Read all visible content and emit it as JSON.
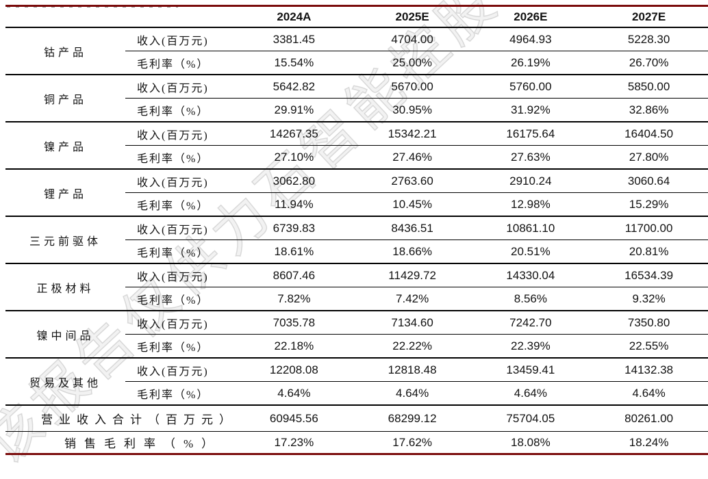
{
  "table": {
    "columns": [
      "2024A",
      "2025E",
      "2026E",
      "2027E"
    ],
    "row_labels": {
      "revenue": "收入(百万元)",
      "margin": "毛利率（%）"
    },
    "groups": [
      {
        "name": "钴产品",
        "revenue": [
          "3381.45",
          "4704.00",
          "4964.93",
          "5228.30"
        ],
        "margin": [
          "15.54%",
          "25.00%",
          "26.19%",
          "26.70%"
        ]
      },
      {
        "name": "铜产品",
        "revenue": [
          "5642.82",
          "5670.00",
          "5760.00",
          "5850.00"
        ],
        "margin": [
          "29.91%",
          "30.95%",
          "31.92%",
          "32.86%"
        ]
      },
      {
        "name": "镍产品",
        "revenue": [
          "14267.35",
          "15342.21",
          "16175.64",
          "16404.50"
        ],
        "margin": [
          "27.10%",
          "27.46%",
          "27.63%",
          "27.80%"
        ]
      },
      {
        "name": "锂产品",
        "revenue": [
          "3062.80",
          "2763.60",
          "2910.24",
          "3060.64"
        ],
        "margin": [
          "11.94%",
          "10.45%",
          "12.98%",
          "15.29%"
        ]
      },
      {
        "name": "三元前驱体",
        "revenue": [
          "6739.83",
          "8436.51",
          "10861.10",
          "11700.00"
        ],
        "margin": [
          "18.61%",
          "18.66%",
          "20.51%",
          "20.81%"
        ]
      },
      {
        "name": "正极材料",
        "revenue": [
          "8607.46",
          "11429.72",
          "14330.04",
          "16534.39"
        ],
        "margin": [
          "7.82%",
          "7.42%",
          "8.56%",
          "9.32%"
        ]
      },
      {
        "name": "镍中间品",
        "revenue": [
          "7035.78",
          "7134.60",
          "7242.70",
          "7350.80"
        ],
        "margin": [
          "22.18%",
          "22.22%",
          "22.39%",
          "22.55%"
        ]
      },
      {
        "name": "贸易及其他",
        "revenue": [
          "12208.08",
          "12818.48",
          "13459.41",
          "14132.38"
        ],
        "margin": [
          "4.64%",
          "4.64%",
          "4.64%",
          "4.64%"
        ]
      }
    ],
    "totals": [
      {
        "label": "营业收入合计（百万元）",
        "values": [
          "60945.56",
          "68299.12",
          "75704.05",
          "80261.00"
        ]
      },
      {
        "label": "销售毛利率（%）",
        "values": [
          "17.23%",
          "17.62%",
          "18.08%",
          "18.24%"
        ]
      }
    ]
  },
  "watermark": {
    "text": "该报告仅供力石智能控股有限公司杨使用",
    "color": "#d9d9d9"
  },
  "colors": {
    "accent_line": "#7a0b0b",
    "table_line": "#000000"
  }
}
